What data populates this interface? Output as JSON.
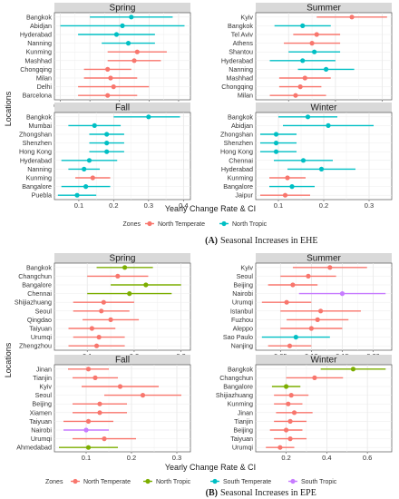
{
  "figure_a": {
    "caption_letter": "(A)",
    "caption_text": "Seasonal Increases in EHE",
    "xlabel": "Yearly Change Rate & CI",
    "ylabel": "Locations",
    "legend_title": "Zones",
    "legend": [
      {
        "name": "North Temperate",
        "color": "#F8766D"
      },
      {
        "name": "North Tropic",
        "color": "#00BFC4"
      }
    ]
  },
  "figure_b": {
    "caption_letter": "(B)",
    "caption_text": "Seasonal Increases in EPE",
    "xlabel": "Yearly Change Rate & CI",
    "ylabel": "Locations",
    "legend_title": "Zones",
    "legend": [
      {
        "name": "North Temperate",
        "color": "#F8766D"
      },
      {
        "name": "North Tropic",
        "color": "#7CAE00"
      },
      {
        "name": "South Temperate",
        "color": "#00BFC4"
      },
      {
        "name": "South Tropic",
        "color": "#C77CFF"
      }
    ]
  },
  "chart_data": [
    {
      "type": "scatter",
      "group": "A",
      "title": "Spring",
      "xlim": [
        -0.01,
        0.22
      ],
      "xticks": [
        0.0,
        0.05,
        0.1,
        0.15,
        0.2
      ],
      "xticklabels": [
        "0.00",
        "0.05",
        "0.10",
        "0.15",
        "0.20"
      ],
      "points": [
        {
          "label": "Bangkok",
          "zone": "North Tropic",
          "value": 0.12,
          "ci": [
            0.05,
            0.19
          ]
        },
        {
          "label": "Abidjan",
          "zone": "North Tropic",
          "value": 0.105,
          "ci": [
            0.0,
            0.21
          ]
        },
        {
          "label": "Hyderabad",
          "zone": "North Tropic",
          "value": 0.095,
          "ci": [
            0.03,
            0.16
          ]
        },
        {
          "label": "Nanning",
          "zone": "North Tropic",
          "value": 0.115,
          "ci": [
            0.07,
            0.16
          ]
        },
        {
          "label": "Kunming",
          "zone": "North Temperate",
          "value": 0.13,
          "ci": [
            0.08,
            0.18
          ]
        },
        {
          "label": "Mashhad",
          "zone": "North Temperate",
          "value": 0.125,
          "ci": [
            0.08,
            0.17
          ]
        },
        {
          "label": "Chongqing",
          "zone": "North Temperate",
          "value": 0.08,
          "ci": [
            0.04,
            0.12
          ]
        },
        {
          "label": "Milan",
          "zone": "North Temperate",
          "value": 0.085,
          "ci": [
            0.04,
            0.13
          ]
        },
        {
          "label": "Delhi",
          "zone": "North Temperate",
          "value": 0.09,
          "ci": [
            0.03,
            0.15
          ]
        },
        {
          "label": "Barcelona",
          "zone": "North Temperate",
          "value": 0.08,
          "ci": [
            0.03,
            0.13
          ]
        }
      ]
    },
    {
      "type": "scatter",
      "group": "A",
      "title": "Summer",
      "xlim": [
        0.03,
        0.32
      ],
      "xticks": [
        0.1,
        0.2,
        0.3
      ],
      "xticklabels": [
        "0.1",
        "0.2",
        "0.3"
      ],
      "points": [
        {
          "label": "Kyiv",
          "zone": "North Temperate",
          "value": 0.235,
          "ci": [
            0.16,
            0.31
          ]
        },
        {
          "label": "Bangkok",
          "zone": "North Tropic",
          "value": 0.13,
          "ci": [
            0.07,
            0.19
          ]
        },
        {
          "label": "Tel Aviv",
          "zone": "North Temperate",
          "value": 0.16,
          "ci": [
            0.11,
            0.21
          ]
        },
        {
          "label": "Athens",
          "zone": "North Temperate",
          "value": 0.15,
          "ci": [
            0.09,
            0.21
          ]
        },
        {
          "label": "Shantou",
          "zone": "North Tropic",
          "value": 0.155,
          "ci": [
            0.1,
            0.21
          ]
        },
        {
          "label": "Hyderabad",
          "zone": "North Tropic",
          "value": 0.13,
          "ci": [
            0.06,
            0.2
          ]
        },
        {
          "label": "Nanning",
          "zone": "North Tropic",
          "value": 0.18,
          "ci": [
            0.12,
            0.24
          ]
        },
        {
          "label": "Mashhad",
          "zone": "North Temperate",
          "value": 0.135,
          "ci": [
            0.08,
            0.19
          ]
        },
        {
          "label": "Chongqing",
          "zone": "North Temperate",
          "value": 0.125,
          "ci": [
            0.08,
            0.17
          ]
        },
        {
          "label": "Milan",
          "zone": "North Temperate",
          "value": 0.115,
          "ci": [
            0.06,
            0.18
          ]
        }
      ]
    },
    {
      "type": "scatter",
      "group": "A",
      "title": "Fall",
      "xlim": [
        0.03,
        0.42
      ],
      "xticks": [
        0.1,
        0.2,
        0.3,
        0.4
      ],
      "xticklabels": [
        "0.1",
        "0.2",
        "0.3",
        "0.4"
      ],
      "points": [
        {
          "label": "Bangkok",
          "zone": "North Tropic",
          "value": 0.3,
          "ci": [
            0.2,
            0.39
          ]
        },
        {
          "label": "Mumbai",
          "zone": "North Tropic",
          "value": 0.145,
          "ci": [
            0.07,
            0.22
          ]
        },
        {
          "label": "Zhongshan",
          "zone": "North Tropic",
          "value": 0.18,
          "ci": [
            0.13,
            0.23
          ]
        },
        {
          "label": "Shenzhen",
          "zone": "North Tropic",
          "value": 0.18,
          "ci": [
            0.13,
            0.23
          ]
        },
        {
          "label": "Hong Kong",
          "zone": "North Tropic",
          "value": 0.18,
          "ci": [
            0.13,
            0.23
          ]
        },
        {
          "label": "Hyderabad",
          "zone": "North Tropic",
          "value": 0.13,
          "ci": [
            0.05,
            0.21
          ]
        },
        {
          "label": "Nanning",
          "zone": "North Tropic",
          "value": 0.115,
          "ci": [
            0.07,
            0.16
          ]
        },
        {
          "label": "Kunming",
          "zone": "North Temperate",
          "value": 0.14,
          "ci": [
            0.09,
            0.19
          ]
        },
        {
          "label": "Bangalore",
          "zone": "North Tropic",
          "value": 0.12,
          "ci": [
            0.05,
            0.19
          ]
        },
        {
          "label": "Puebla",
          "zone": "North Tropic",
          "value": 0.095,
          "ci": [
            0.04,
            0.15
          ]
        }
      ]
    },
    {
      "type": "scatter",
      "group": "A",
      "title": "Winter",
      "xlim": [
        0.05,
        0.35
      ],
      "xticks": [
        0.1,
        0.2,
        0.3
      ],
      "xticklabels": [
        "0.1",
        "0.2",
        "0.3"
      ],
      "points": [
        {
          "label": "Bangkok",
          "zone": "North Tropic",
          "value": 0.165,
          "ci": [
            0.1,
            0.23
          ]
        },
        {
          "label": "Abidjan",
          "zone": "North Tropic",
          "value": 0.21,
          "ci": [
            0.11,
            0.31
          ]
        },
        {
          "label": "Zhongshan",
          "zone": "North Tropic",
          "value": 0.095,
          "ci": [
            0.06,
            0.14
          ]
        },
        {
          "label": "Shenzhen",
          "zone": "North Tropic",
          "value": 0.095,
          "ci": [
            0.06,
            0.14
          ]
        },
        {
          "label": "Hong Kong",
          "zone": "North Tropic",
          "value": 0.095,
          "ci": [
            0.06,
            0.14
          ]
        },
        {
          "label": "Chennai",
          "zone": "North Tropic",
          "value": 0.155,
          "ci": [
            0.09,
            0.22
          ]
        },
        {
          "label": "Hyderabad",
          "zone": "North Tropic",
          "value": 0.195,
          "ci": [
            0.12,
            0.27
          ]
        },
        {
          "label": "Kunming",
          "zone": "North Temperate",
          "value": 0.12,
          "ci": [
            0.08,
            0.16
          ]
        },
        {
          "label": "Bangalore",
          "zone": "North Tropic",
          "value": 0.13,
          "ci": [
            0.08,
            0.18
          ]
        },
        {
          "label": "Jaipur",
          "zone": "North Temperate",
          "value": 0.115,
          "ci": [
            0.06,
            0.17
          ]
        }
      ]
    },
    {
      "type": "scatter",
      "group": "B",
      "title": "Spring",
      "xlim": [
        0.03,
        0.32
      ],
      "xticks": [
        0.1,
        0.2,
        0.3
      ],
      "xticklabels": [
        "0.1",
        "0.2",
        "0.3"
      ],
      "points": [
        {
          "label": "Bangkok",
          "zone": "North Tropic",
          "value": 0.18,
          "ci": [
            0.12,
            0.24
          ]
        },
        {
          "label": "Changchun",
          "zone": "North Temperate",
          "value": 0.165,
          "ci": [
            0.1,
            0.23
          ]
        },
        {
          "label": "Bangalore",
          "zone": "North Tropic",
          "value": 0.225,
          "ci": [
            0.15,
            0.3
          ]
        },
        {
          "label": "Chennai",
          "zone": "North Tropic",
          "value": 0.19,
          "ci": [
            0.1,
            0.28
          ]
        },
        {
          "label": "Shijiazhuang",
          "zone": "North Temperate",
          "value": 0.135,
          "ci": [
            0.07,
            0.2
          ]
        },
        {
          "label": "Seoul",
          "zone": "North Temperate",
          "value": 0.13,
          "ci": [
            0.07,
            0.19
          ]
        },
        {
          "label": "Qingdao",
          "zone": "North Temperate",
          "value": 0.15,
          "ci": [
            0.09,
            0.21
          ]
        },
        {
          "label": "Taiyuan",
          "zone": "North Temperate",
          "value": 0.11,
          "ci": [
            0.06,
            0.16
          ]
        },
        {
          "label": "Urumqi",
          "zone": "North Temperate",
          "value": 0.125,
          "ci": [
            0.07,
            0.18
          ]
        },
        {
          "label": "Zhengzhou",
          "zone": "North Temperate",
          "value": 0.12,
          "ci": [
            0.06,
            0.18
          ]
        }
      ]
    },
    {
      "type": "scatter",
      "group": "B",
      "title": "Summer",
      "xlim": [
        0.01,
        0.23
      ],
      "xticks": [
        0.05,
        0.1,
        0.15,
        0.2
      ],
      "xticklabels": [
        "0.05",
        "0.10",
        "0.15",
        "0.20"
      ],
      "points": [
        {
          "label": "Kyiv",
          "zone": "North Temperate",
          "value": 0.13,
          "ci": [
            0.07,
            0.19
          ]
        },
        {
          "label": "Seoul",
          "zone": "North Temperate",
          "value": 0.095,
          "ci": [
            0.05,
            0.14
          ]
        },
        {
          "label": "Beijing",
          "zone": "North Temperate",
          "value": 0.07,
          "ci": [
            0.03,
            0.11
          ]
        },
        {
          "label": "Nairobi",
          "zone": "South Tropic",
          "value": 0.15,
          "ci": [
            0.08,
            0.22
          ]
        },
        {
          "label": "Urumqi",
          "zone": "North Temperate",
          "value": 0.06,
          "ci": [
            0.02,
            0.1
          ]
        },
        {
          "label": "Istanbul",
          "zone": "North Temperate",
          "value": 0.115,
          "ci": [
            0.05,
            0.18
          ]
        },
        {
          "label": "Fuzhou",
          "zone": "North Temperate",
          "value": 0.11,
          "ci": [
            0.06,
            0.16
          ]
        },
        {
          "label": "Aleppo",
          "zone": "North Temperate",
          "value": 0.1,
          "ci": [
            0.05,
            0.15
          ]
        },
        {
          "label": "Sao Paulo",
          "zone": "South Temperate",
          "value": 0.075,
          "ci": [
            0.02,
            0.13
          ]
        },
        {
          "label": "Nanjing",
          "zone": "North Temperate",
          "value": 0.065,
          "ci": [
            0.03,
            0.1
          ]
        }
      ]
    },
    {
      "type": "scatter",
      "group": "B",
      "title": "Fall",
      "xlim": [
        0.03,
        0.33
      ],
      "xticks": [
        0.1,
        0.2,
        0.3
      ],
      "xticklabels": [
        "0.1",
        "0.2",
        "0.3"
      ],
      "points": [
        {
          "label": "Jinan",
          "zone": "North Temperate",
          "value": 0.105,
          "ci": [
            0.06,
            0.15
          ]
        },
        {
          "label": "Tianjin",
          "zone": "North Temperate",
          "value": 0.12,
          "ci": [
            0.07,
            0.17
          ]
        },
        {
          "label": "Kyiv",
          "zone": "North Temperate",
          "value": 0.175,
          "ci": [
            0.09,
            0.26
          ]
        },
        {
          "label": "Seoul",
          "zone": "North Temperate",
          "value": 0.225,
          "ci": [
            0.14,
            0.31
          ]
        },
        {
          "label": "Beijing",
          "zone": "North Temperate",
          "value": 0.13,
          "ci": [
            0.07,
            0.19
          ]
        },
        {
          "label": "Xiamen",
          "zone": "North Temperate",
          "value": 0.13,
          "ci": [
            0.07,
            0.19
          ]
        },
        {
          "label": "Taiyuan",
          "zone": "North Temperate",
          "value": 0.105,
          "ci": [
            0.05,
            0.16
          ]
        },
        {
          "label": "Nairobi",
          "zone": "South Tropic",
          "value": 0.1,
          "ci": [
            0.05,
            0.15
          ]
        },
        {
          "label": "Urumqi",
          "zone": "North Temperate",
          "value": 0.14,
          "ci": [
            0.07,
            0.21
          ]
        },
        {
          "label": "Ahmedabad",
          "zone": "North Tropic",
          "value": 0.105,
          "ci": [
            0.04,
            0.17
          ]
        }
      ]
    },
    {
      "type": "scatter",
      "group": "B",
      "title": "Winter",
      "xlim": [
        0.05,
        0.72
      ],
      "xticks": [
        0.2,
        0.4,
        0.6
      ],
      "xticklabels": [
        "0.2",
        "0.4",
        "0.6"
      ],
      "points": [
        {
          "label": "Bangkok",
          "zone": "North Tropic",
          "value": 0.53,
          "ci": [
            0.37,
            0.69
          ]
        },
        {
          "label": "Changchun",
          "zone": "North Temperate",
          "value": 0.34,
          "ci": [
            0.2,
            0.48
          ]
        },
        {
          "label": "Bangalore",
          "zone": "North Tropic",
          "value": 0.2,
          "ci": [
            0.13,
            0.27
          ]
        },
        {
          "label": "Shijiazhuang",
          "zone": "North Temperate",
          "value": 0.225,
          "ci": [
            0.14,
            0.31
          ]
        },
        {
          "label": "Kunming",
          "zone": "North Temperate",
          "value": 0.21,
          "ci": [
            0.14,
            0.28
          ]
        },
        {
          "label": "Jinan",
          "zone": "North Temperate",
          "value": 0.24,
          "ci": [
            0.15,
            0.33
          ]
        },
        {
          "label": "Tianjin",
          "zone": "North Temperate",
          "value": 0.22,
          "ci": [
            0.14,
            0.3
          ]
        },
        {
          "label": "Beijing",
          "zone": "North Temperate",
          "value": 0.2,
          "ci": [
            0.12,
            0.28
          ]
        },
        {
          "label": "Taiyuan",
          "zone": "North Temperate",
          "value": 0.22,
          "ci": [
            0.14,
            0.3
          ]
        },
        {
          "label": "Urumqi",
          "zone": "North Temperate",
          "value": 0.17,
          "ci": [
            0.1,
            0.24
          ]
        }
      ]
    }
  ]
}
